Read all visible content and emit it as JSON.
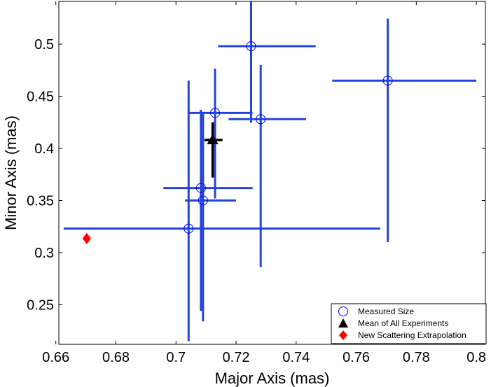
{
  "chart_data": {
    "type": "scatter",
    "xlabel": "Major Axis (mas)",
    "ylabel": "Minor Axis (mas)",
    "xlim": [
      0.661,
      0.803
    ],
    "ylim": [
      0.212,
      0.541
    ],
    "xticks": [
      0.66,
      0.68,
      0.7,
      0.72,
      0.74,
      0.76,
      0.78,
      0.8
    ],
    "xtick_labels": [
      "0.66",
      "0.68",
      "0.7",
      "0.72",
      "0.74",
      "0.76",
      "0.78",
      "0.8"
    ],
    "yticks": [
      0.25,
      0.3,
      0.35,
      0.4,
      0.45,
      0.5
    ],
    "ytick_labels": [
      "0.25",
      "0.3",
      "0.35",
      "0.4",
      "0.45",
      "0.5"
    ],
    "grid": false,
    "legend_position": "lower-right",
    "series": [
      {
        "name": "Measured Size",
        "marker": "open-circle",
        "color": "#0000ff",
        "errorbar_color": "#2244dd",
        "points": [
          {
            "x": 0.725,
            "y": 0.498,
            "xerr": [
              0.714,
              0.7465
            ],
            "yerr": [
              0.4245,
              0.541
            ]
          },
          {
            "x": 0.7705,
            "y": 0.465,
            "xerr": [
              0.752,
              0.8
            ],
            "yerr": [
              0.31,
              0.5245
            ]
          },
          {
            "x": 0.713,
            "y": 0.434,
            "xerr": [
              0.7043,
              0.7255
            ],
            "yerr": [
              0.352,
              0.4765
            ]
          },
          {
            "x": 0.7282,
            "y": 0.428,
            "xerr": [
              0.7175,
              0.7433
            ],
            "yerr": [
              0.286,
              0.48
            ]
          },
          {
            "x": 0.7083,
            "y": 0.362,
            "xerr": [
              0.6958,
              0.7255
            ],
            "yerr": [
              0.244,
              0.437
            ]
          },
          {
            "x": 0.709,
            "y": 0.35,
            "xerr": [
              0.703,
              0.72
            ],
            "yerr": [
              0.234,
              0.435
            ]
          },
          {
            "x": 0.7042,
            "y": 0.323,
            "xerr": [
              0.6626,
              0.768
            ],
            "yerr": [
              0.215,
              0.465
            ]
          }
        ]
      },
      {
        "name": "Mean of All Experiments",
        "marker": "filled-triangle",
        "color": "#000000",
        "points": [
          {
            "x": 0.7122,
            "y": 0.408,
            "xerr": [
              0.7095,
              0.7155
            ],
            "yerr": [
              0.372,
              0.425
            ]
          }
        ]
      },
      {
        "name": "New Scattering Extrapolation",
        "marker": "filled-diamond",
        "color": "#ff0000",
        "points": [
          {
            "x": 0.6703,
            "y": 0.3135
          }
        ]
      }
    ]
  }
}
